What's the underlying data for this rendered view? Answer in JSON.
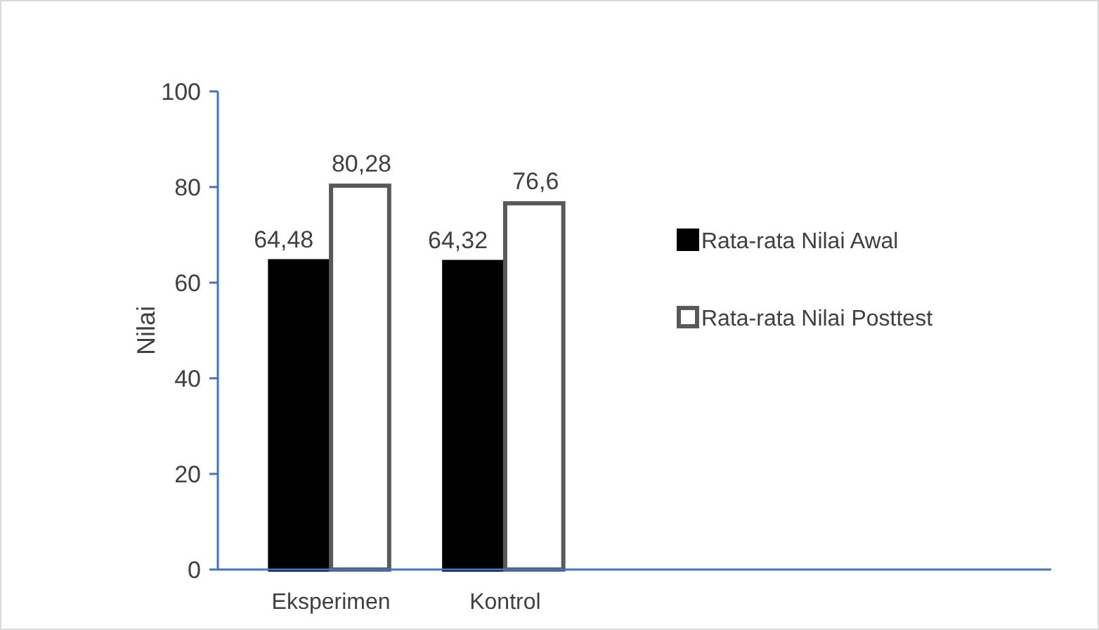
{
  "chart_data": {
    "type": "bar",
    "ylabel": "Nilai",
    "categories": [
      "Eksperimen",
      "Kontrol"
    ],
    "series": [
      {
        "name": "Rata-rata Nilai Awal",
        "color": "#000000",
        "values": [
          64.48,
          64.32
        ],
        "value_labels": [
          "64,48",
          "64,32"
        ]
      },
      {
        "name": "Rata-rata Nilai Posttest",
        "color": "#ffffff",
        "values": [
          80.28,
          76.6
        ],
        "value_labels": [
          "80,28",
          "76,6"
        ]
      }
    ],
    "ylim": [
      0,
      100
    ],
    "yticks": [
      0,
      20,
      40,
      60,
      80,
      100
    ],
    "grid": false,
    "legend": "right"
  }
}
